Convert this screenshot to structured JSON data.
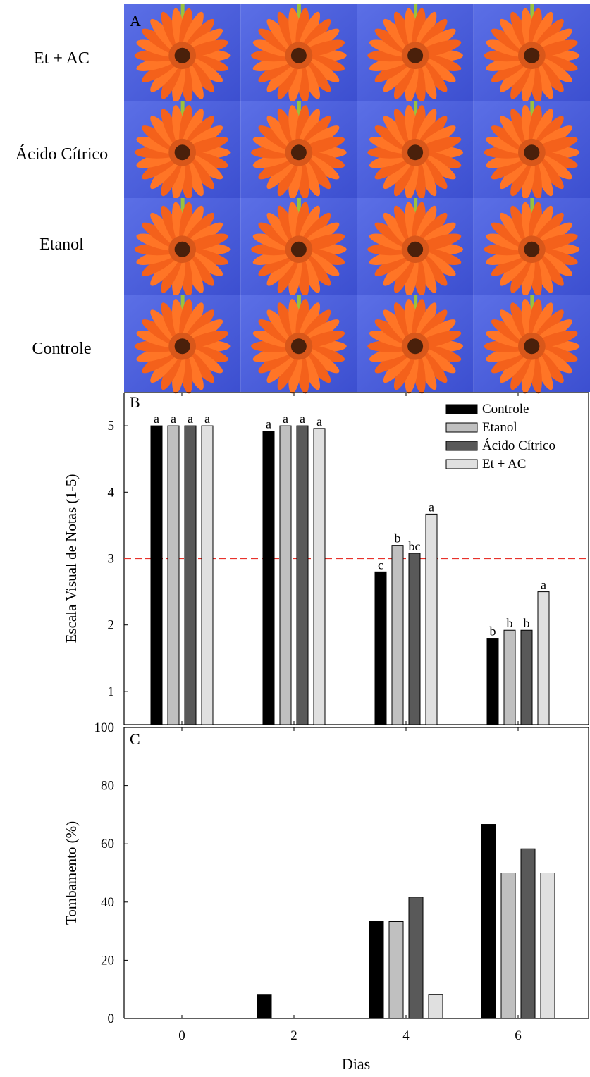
{
  "panel_a": {
    "letter": "A",
    "rows": [
      "Et + AC",
      "Ácido Cítrico",
      "Etanol",
      "Controle"
    ]
  },
  "chart_data": [
    {
      "type": "bar",
      "panel": "B",
      "categories": [
        "0",
        "2",
        "4",
        "6"
      ],
      "ylabel": "Escala Visual de Notas (1-5)",
      "ylim": [
        0.5,
        5.5
      ],
      "yticks": [
        "1",
        "2",
        "3",
        "4",
        "5"
      ],
      "reference_line": {
        "value": 3,
        "style": "dashed",
        "color": "#e8322b"
      },
      "legend": {
        "placement": "top-right"
      },
      "series": [
        {
          "name": "Controle",
          "color": "#000000",
          "values": [
            5.0,
            4.92,
            2.8,
            1.8
          ],
          "labels": [
            "a",
            "a",
            "c",
            "b"
          ]
        },
        {
          "name": "Etanol",
          "color": "#c0c0c0",
          "values": [
            5.0,
            5.0,
            3.2,
            1.92
          ],
          "labels": [
            "a",
            "a",
            "b",
            "b"
          ]
        },
        {
          "name": "Ácido Cítrico",
          "color": "#595959",
          "values": [
            5.0,
            5.0,
            3.08,
            1.92
          ],
          "labels": [
            "a",
            "a",
            "bc",
            "b"
          ]
        },
        {
          "name": "Et + AC",
          "color": "#e0e0e0",
          "values": [
            5.0,
            4.96,
            3.67,
            2.5
          ],
          "labels": [
            "a",
            "a",
            "a",
            "a"
          ]
        }
      ]
    },
    {
      "type": "bar",
      "panel": "C",
      "categories": [
        "0",
        "2",
        "4",
        "6"
      ],
      "xlabel": "Dias",
      "ylabel": "Tombamento (%)",
      "ylim": [
        0,
        100
      ],
      "yticks": [
        "0",
        "20",
        "40",
        "60",
        "80",
        "100"
      ],
      "series": [
        {
          "name": "Controle",
          "color": "#000000",
          "values": [
            0,
            8.3,
            33.3,
            66.7
          ]
        },
        {
          "name": "Etanol",
          "color": "#c0c0c0",
          "values": [
            0,
            0,
            33.3,
            50.0
          ]
        },
        {
          "name": "Ácido Cítrico",
          "color": "#595959",
          "values": [
            0,
            0,
            41.7,
            58.3
          ]
        },
        {
          "name": "Et + AC",
          "color": "#e0e0e0",
          "values": [
            0,
            0,
            8.3,
            50.0
          ]
        }
      ]
    }
  ]
}
